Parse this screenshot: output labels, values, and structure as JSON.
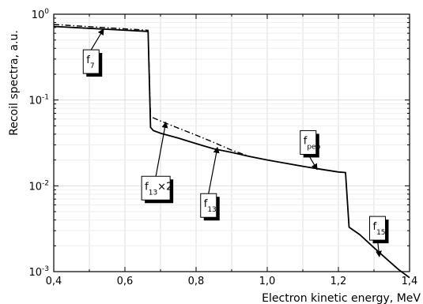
{
  "chart_data": {
    "type": "line",
    "title": "",
    "xlabel": "Electron kinetic energy, MeV",
    "ylabel": "Recoil spectra, a.u.",
    "xlim": [
      0.4,
      1.4
    ],
    "ylim": [
      0.001,
      1
    ],
    "y_scale": "log",
    "grid": true,
    "x_ticks": [
      0.4,
      0.6,
      0.8,
      1.0,
      1.2,
      1.4
    ],
    "x_tick_labels": [
      "0,4",
      "0,6",
      "0,8",
      "1,0",
      "1,2",
      "1,4"
    ],
    "x_minor_ticks": [
      0.5,
      0.7,
      0.9,
      1.1,
      1.3
    ],
    "y_ticks": [
      {
        "value": 1,
        "base": "10",
        "exp": "0"
      },
      {
        "value": 0.1,
        "base": "10",
        "exp": "-1"
      },
      {
        "value": 0.01,
        "base": "10",
        "exp": "-2"
      },
      {
        "value": 0.001,
        "base": "10",
        "exp": "-3"
      }
    ],
    "series": [
      {
        "style": "solid",
        "color": "#000000",
        "x": [
          0.4,
          0.665,
          0.672,
          0.68,
          0.7,
          0.75,
          0.8,
          0.85,
          0.9,
          0.95,
          1.0,
          1.05,
          1.1,
          1.15,
          1.2,
          1.22,
          1.23,
          1.26,
          1.3,
          1.34,
          1.37,
          1.4
        ],
        "y": [
          0.72,
          0.63,
          0.048,
          0.044,
          0.041,
          0.036,
          0.031,
          0.027,
          0.0245,
          0.022,
          0.02,
          0.0184,
          0.0169,
          0.0156,
          0.0145,
          0.0143,
          0.0033,
          0.0027,
          0.0019,
          0.00135,
          0.00105,
          0.00085
        ]
      },
      {
        "style": "dash-dot",
        "color": "#000000",
        "x": [
          0.4,
          0.665,
          0.672,
          0.7,
          0.75,
          0.8,
          0.85,
          0.9,
          0.95
        ],
        "y": [
          0.76,
          0.65,
          0.064,
          0.057,
          0.047,
          0.039,
          0.032,
          0.026,
          0.022
        ]
      }
    ],
    "annotations": [
      {
        "main": "f",
        "sub": "7",
        "suffix": "",
        "box_x": 0.505,
        "box_y": 0.28,
        "arrow_x": 0.54,
        "arrow_y": 0.67
      },
      {
        "main": "f",
        "sub": "13",
        "suffix": "×2",
        "box_x": 0.687,
        "box_y": 0.0094,
        "arrow_x": 0.715,
        "arrow_y": 0.055
      },
      {
        "main": "f",
        "sub": "13",
        "suffix": "",
        "box_x": 0.835,
        "box_y": 0.0059,
        "arrow_x": 0.86,
        "arrow_y": 0.028
      },
      {
        "main": "f",
        "sub": "pep",
        "suffix": "",
        "box_x": 1.115,
        "box_y": 0.032,
        "arrow_x": 1.14,
        "arrow_y": 0.0155
      },
      {
        "main": "f",
        "sub": "15",
        "suffix": "",
        "box_x": 1.31,
        "box_y": 0.0032,
        "arrow_x": 1.315,
        "arrow_y": 0.0015
      }
    ]
  }
}
